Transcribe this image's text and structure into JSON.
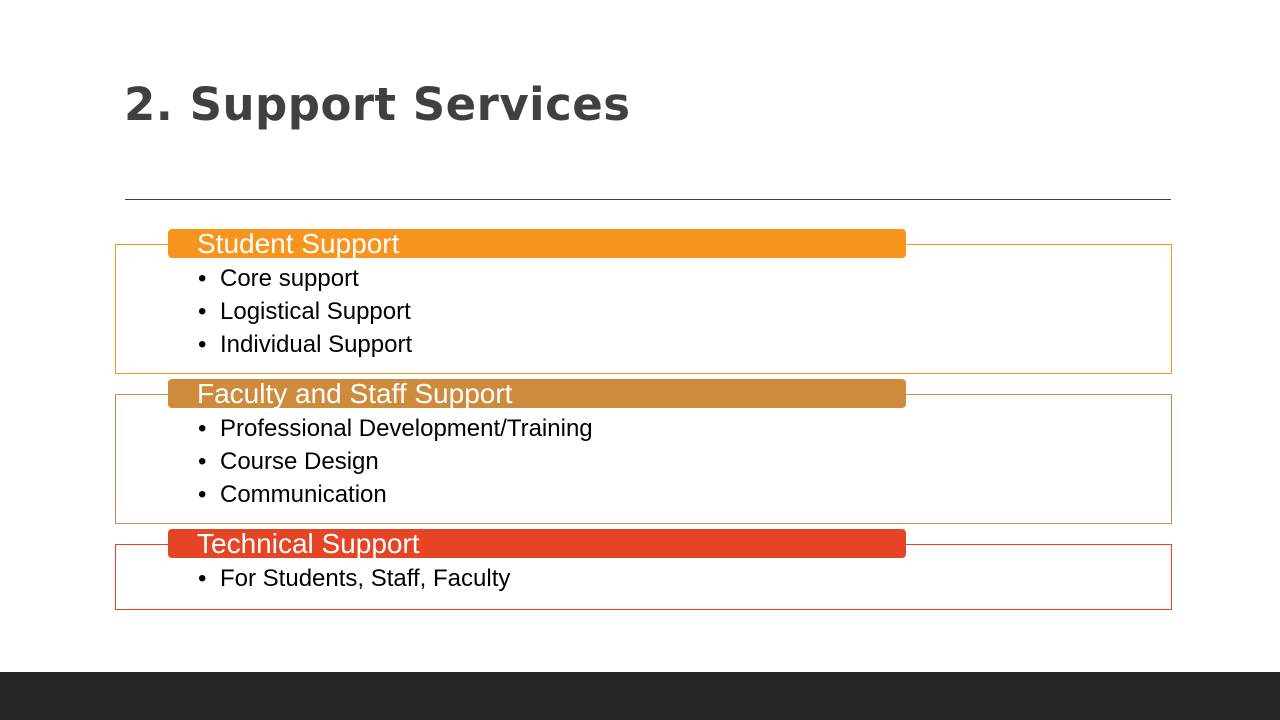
{
  "slide": {
    "title": "2. Support Services"
  },
  "groups": [
    {
      "heading": "Student Support",
      "color": "#f7941d",
      "items": [
        "Core support",
        "Logistical Support",
        "Individual Support"
      ]
    },
    {
      "heading": "Faculty and Staff Support",
      "color": "#ce8b3b",
      "items": [
        "Professional Development/Training",
        "Course Design",
        "Communication"
      ]
    },
    {
      "heading": "Technical Support",
      "color": "#e54525",
      "items": [
        "For Students, Staff, Faculty"
      ]
    }
  ],
  "colors": {
    "title": "#404040",
    "footer_band": "#262626"
  }
}
